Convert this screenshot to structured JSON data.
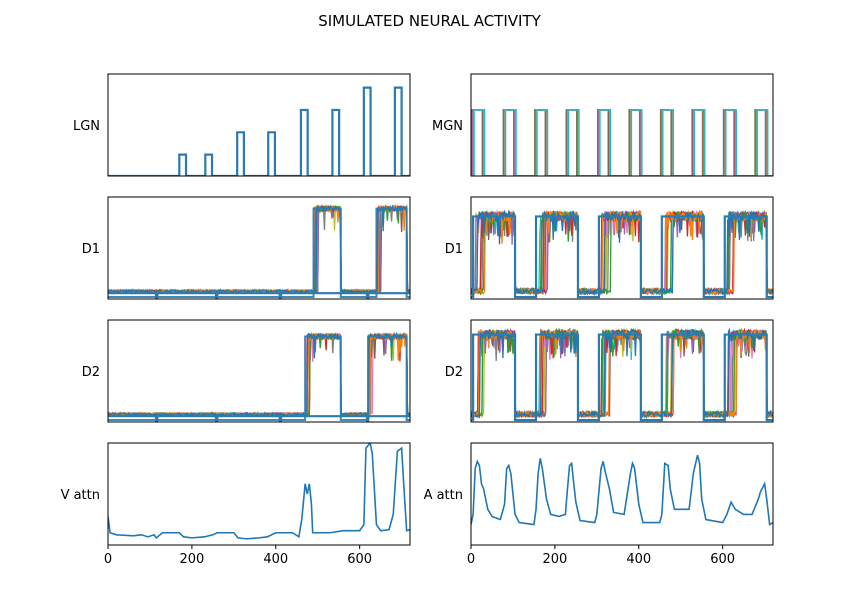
{
  "title": "SIMULATED NEURAL ACTIVITY",
  "chart_data": {
    "type": "line",
    "title": "SIMULATED NEURAL ACTIVITY",
    "x_axis": {
      "range": [
        0,
        720
      ],
      "ticks": [
        0,
        200,
        400,
        600
      ],
      "tick_labels": [
        "0",
        "200",
        "400",
        "600"
      ],
      "shown_on_rows": [
        "bottom"
      ]
    },
    "grid": false,
    "series_colors": [
      "#1f77b4",
      "#ff7f0e",
      "#2ca02c",
      "#d62728",
      "#9467bd",
      "#8c564b",
      "#e377c2",
      "#7f7f7f",
      "#bcbd22",
      "#17becf"
    ],
    "stimulus_color": "#2b7bb0",
    "panels": [
      {
        "id": "lgn",
        "ylabel": "LGN",
        "row": 0,
        "col": 0,
        "kind": "visual-input",
        "ylim": [
          0,
          1.05
        ],
        "pulses": [
          {
            "start": 170,
            "end": 186,
            "level": 0.22
          },
          {
            "start": 232,
            "end": 248,
            "level": 0.22
          },
          {
            "start": 308,
            "end": 324,
            "level": 0.45
          },
          {
            "start": 382,
            "end": 398,
            "level": 0.45
          },
          {
            "start": 460,
            "end": 476,
            "level": 0.68
          },
          {
            "start": 535,
            "end": 551,
            "level": 0.68
          },
          {
            "start": 610,
            "end": 626,
            "level": 0.91
          },
          {
            "start": 684,
            "end": 700,
            "level": 0.91
          }
        ]
      },
      {
        "id": "mgn",
        "ylabel": "MGN",
        "row": 0,
        "col": 1,
        "kind": "auditory-input",
        "ylim": [
          0,
          1.05
        ],
        "pulse_level": 0.68,
        "pulses": [
          {
            "start": 5,
            "end": 30
          },
          {
            "start": 80,
            "end": 105
          },
          {
            "start": 155,
            "end": 180
          },
          {
            "start": 230,
            "end": 255
          },
          {
            "start": 305,
            "end": 330
          },
          {
            "start": 380,
            "end": 405
          },
          {
            "start": 455,
            "end": 480
          },
          {
            "start": 530,
            "end": 555
          },
          {
            "start": 605,
            "end": 630
          },
          {
            "start": 680,
            "end": 705
          }
        ]
      },
      {
        "id": "d1-left",
        "ylabel": "D1",
        "row": 1,
        "col": 0,
        "kind": "visual-response",
        "ylim": [
          0,
          1.05
        ],
        "baseline": 0.08,
        "high": 0.93,
        "active_windows": [
          {
            "start": 490,
            "end": 555
          },
          {
            "start": 640,
            "end": 712
          }
        ],
        "onsets_right": [
          {
            "window": 0,
            "onset": 490
          },
          {
            "window": 1,
            "onset": 640
          }
        ]
      },
      {
        "id": "mgn-d1",
        "ylabel": "D1",
        "row": 1,
        "col": 1,
        "kind": "auditory-response",
        "ylim": [
          0,
          1.05
        ],
        "baseline": 0.08,
        "high": 0.85,
        "windows": [
          {
            "start": 5,
            "end": 105
          },
          {
            "start": 155,
            "end": 255
          },
          {
            "start": 305,
            "end": 405
          },
          {
            "start": 455,
            "end": 555
          },
          {
            "start": 605,
            "end": 705
          }
        ]
      },
      {
        "id": "d2-left",
        "ylabel": "D2",
        "row": 2,
        "col": 0,
        "kind": "visual-response",
        "ylim": [
          0,
          1.05
        ],
        "baseline": 0.08,
        "high": 0.88,
        "active_windows": [
          {
            "start": 470,
            "end": 555
          },
          {
            "start": 620,
            "end": 712
          }
        ]
      },
      {
        "id": "d2-right",
        "ylabel": "D2",
        "row": 2,
        "col": 1,
        "kind": "auditory-response",
        "ylim": [
          0,
          1.05
        ],
        "baseline": 0.08,
        "high": 0.9,
        "windows": [
          {
            "start": 5,
            "end": 105
          },
          {
            "start": 155,
            "end": 255
          },
          {
            "start": 305,
            "end": 405
          },
          {
            "start": 455,
            "end": 555
          },
          {
            "start": 605,
            "end": 705
          }
        ]
      },
      {
        "id": "v-attn",
        "ylabel": "V attn",
        "row": 3,
        "col": 0,
        "kind": "attention",
        "ylim": [
          0,
          1.0
        ],
        "points": [
          [
            0,
            0.28
          ],
          [
            5,
            0.12
          ],
          [
            20,
            0.1
          ],
          [
            60,
            0.09
          ],
          [
            80,
            0.1
          ],
          [
            95,
            0.08
          ],
          [
            110,
            0.1
          ],
          [
            115,
            0.07
          ],
          [
            130,
            0.12
          ],
          [
            170,
            0.12
          ],
          [
            180,
            0.08
          ],
          [
            200,
            0.07
          ],
          [
            230,
            0.08
          ],
          [
            250,
            0.1
          ],
          [
            260,
            0.12
          ],
          [
            300,
            0.12
          ],
          [
            310,
            0.07
          ],
          [
            330,
            0.06
          ],
          [
            360,
            0.07
          ],
          [
            380,
            0.08
          ],
          [
            400,
            0.12
          ],
          [
            440,
            0.12
          ],
          [
            455,
            0.08
          ],
          [
            462,
            0.25
          ],
          [
            470,
            0.6
          ],
          [
            475,
            0.5
          ],
          [
            480,
            0.6
          ],
          [
            485,
            0.4
          ],
          [
            488,
            0.12
          ],
          [
            530,
            0.12
          ],
          [
            560,
            0.14
          ],
          [
            600,
            0.14
          ],
          [
            610,
            0.2
          ],
          [
            615,
            0.95
          ],
          [
            625,
            1.0
          ],
          [
            630,
            0.9
          ],
          [
            640,
            0.2
          ],
          [
            650,
            0.14
          ],
          [
            670,
            0.15
          ],
          [
            680,
            0.3
          ],
          [
            690,
            0.92
          ],
          [
            700,
            0.95
          ],
          [
            705,
            0.6
          ],
          [
            712,
            0.14
          ],
          [
            720,
            0.15
          ]
        ]
      },
      {
        "id": "a-attn",
        "ylabel": "A attn",
        "row": 3,
        "col": 1,
        "kind": "attention",
        "ylim": [
          0,
          1.0
        ],
        "points": [
          [
            0,
            0.2
          ],
          [
            5,
            0.3
          ],
          [
            10,
            0.75
          ],
          [
            15,
            0.82
          ],
          [
            20,
            0.78
          ],
          [
            25,
            0.6
          ],
          [
            30,
            0.55
          ],
          [
            35,
            0.45
          ],
          [
            40,
            0.35
          ],
          [
            50,
            0.28
          ],
          [
            70,
            0.25
          ],
          [
            80,
            0.4
          ],
          [
            85,
            0.75
          ],
          [
            90,
            0.78
          ],
          [
            95,
            0.7
          ],
          [
            100,
            0.5
          ],
          [
            105,
            0.3
          ],
          [
            115,
            0.22
          ],
          [
            150,
            0.2
          ],
          [
            155,
            0.35
          ],
          [
            160,
            0.7
          ],
          [
            165,
            0.85
          ],
          [
            170,
            0.75
          ],
          [
            175,
            0.6
          ],
          [
            180,
            0.45
          ],
          [
            190,
            0.3
          ],
          [
            210,
            0.28
          ],
          [
            225,
            0.3
          ],
          [
            230,
            0.55
          ],
          [
            235,
            0.78
          ],
          [
            240,
            0.8
          ],
          [
            245,
            0.6
          ],
          [
            250,
            0.42
          ],
          [
            260,
            0.24
          ],
          [
            295,
            0.22
          ],
          [
            300,
            0.3
          ],
          [
            310,
            0.75
          ],
          [
            315,
            0.82
          ],
          [
            320,
            0.72
          ],
          [
            330,
            0.55
          ],
          [
            340,
            0.32
          ],
          [
            365,
            0.3
          ],
          [
            380,
            0.7
          ],
          [
            385,
            0.8
          ],
          [
            390,
            0.75
          ],
          [
            400,
            0.4
          ],
          [
            410,
            0.22
          ],
          [
            450,
            0.22
          ],
          [
            455,
            0.3
          ],
          [
            462,
            0.8
          ],
          [
            470,
            0.78
          ],
          [
            475,
            0.55
          ],
          [
            485,
            0.35
          ],
          [
            520,
            0.35
          ],
          [
            530,
            0.7
          ],
          [
            540,
            0.88
          ],
          [
            545,
            0.8
          ],
          [
            550,
            0.45
          ],
          [
            560,
            0.25
          ],
          [
            600,
            0.22
          ],
          [
            610,
            0.3
          ],
          [
            620,
            0.42
          ],
          [
            630,
            0.35
          ],
          [
            650,
            0.3
          ],
          [
            670,
            0.3
          ],
          [
            685,
            0.45
          ],
          [
            690,
            0.52
          ],
          [
            700,
            0.6
          ],
          [
            705,
            0.45
          ],
          [
            712,
            0.2
          ],
          [
            720,
            0.22
          ]
        ]
      }
    ]
  }
}
